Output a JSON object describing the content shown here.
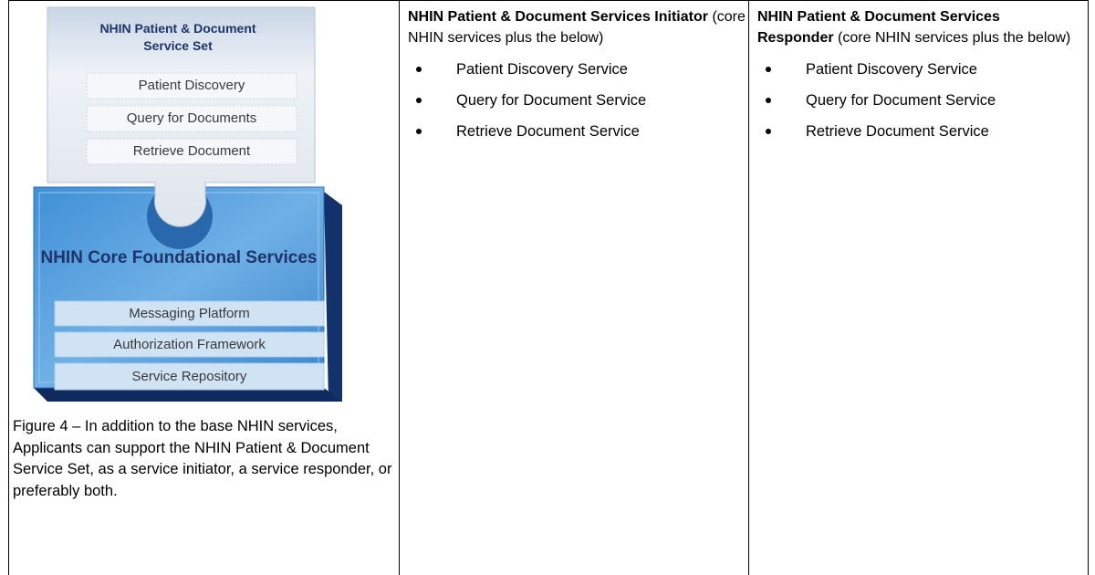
{
  "figure": {
    "top_piece": {
      "title": "NHIN Patient & Document Service Set",
      "items": [
        "Patient Discovery",
        "Query for Documents",
        "Retrieve Document"
      ]
    },
    "bottom_piece": {
      "title": "NHIN Core Foundational Services",
      "items": [
        "Messaging Platform",
        "Authorization Framework",
        "Service Repository"
      ]
    },
    "caption": "Figure 4 – In addition to the base NHIN services, Applicants can support the NHIN Patient & Document Service Set, as a service initiator, a service responder, or preferably both."
  },
  "columns": [
    {
      "heading_bold": "NHIN Patient & Document Services Initiator",
      "heading_rest": "(core NHIN services plus the below)",
      "items": [
        "Patient Discovery Service",
        "Query for Document Service",
        "Retrieve Document Service"
      ]
    },
    {
      "heading_bold": "NHIN Patient & Document Services Responder",
      "heading_rest": "(core NHIN services plus the below)",
      "items": [
        "Patient Discovery Service",
        "Query for Document Service",
        "Retrieve Document Service"
      ]
    }
  ]
}
